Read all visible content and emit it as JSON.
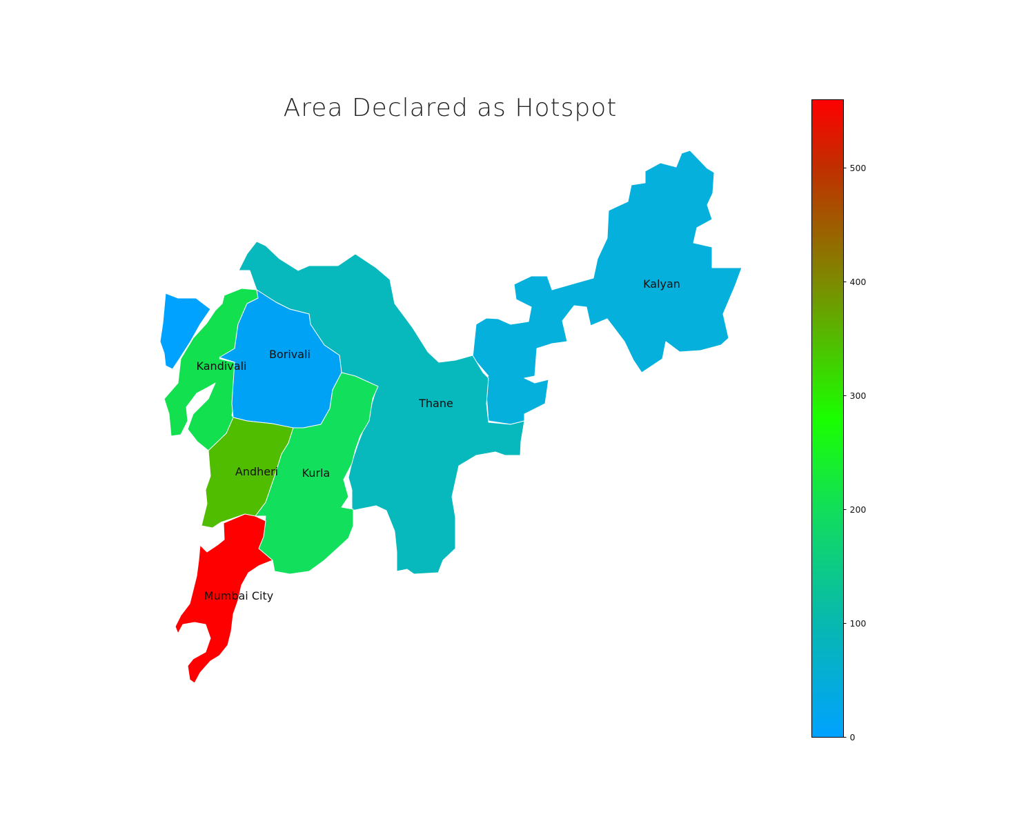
{
  "title": "Area Declared as Hotspot",
  "colorbar": {
    "min": 0,
    "max": 560,
    "ticks": [
      0,
      100,
      200,
      300,
      400,
      500
    ],
    "gradient_stops": [
      {
        "value": 0,
        "color": "#00a2ff"
      },
      {
        "value": 100,
        "color": "#07b8b0"
      },
      {
        "value": 200,
        "color": "#12de5a"
      },
      {
        "value": 280,
        "color": "#1aff00"
      },
      {
        "value": 400,
        "color": "#7d8a00"
      },
      {
        "value": 500,
        "color": "#c02f00"
      },
      {
        "value": 560,
        "color": "#ff0000"
      }
    ]
  },
  "regions": [
    {
      "name": "Kalyan",
      "color": "#05b0dc"
    },
    {
      "name": "Thane",
      "color": "#07b8bd"
    },
    {
      "name": "Borivali",
      "color": "#00a2f5"
    },
    {
      "name": "",
      "color": "#00a2ff"
    },
    {
      "name": "Kandivali",
      "color": "#12e04e"
    },
    {
      "name": "Andheri",
      "color": "#50bd00"
    },
    {
      "name": "Kurla",
      "color": "#12e05c"
    },
    {
      "name": "Mumbai City",
      "color": "#ff0000"
    }
  ]
}
